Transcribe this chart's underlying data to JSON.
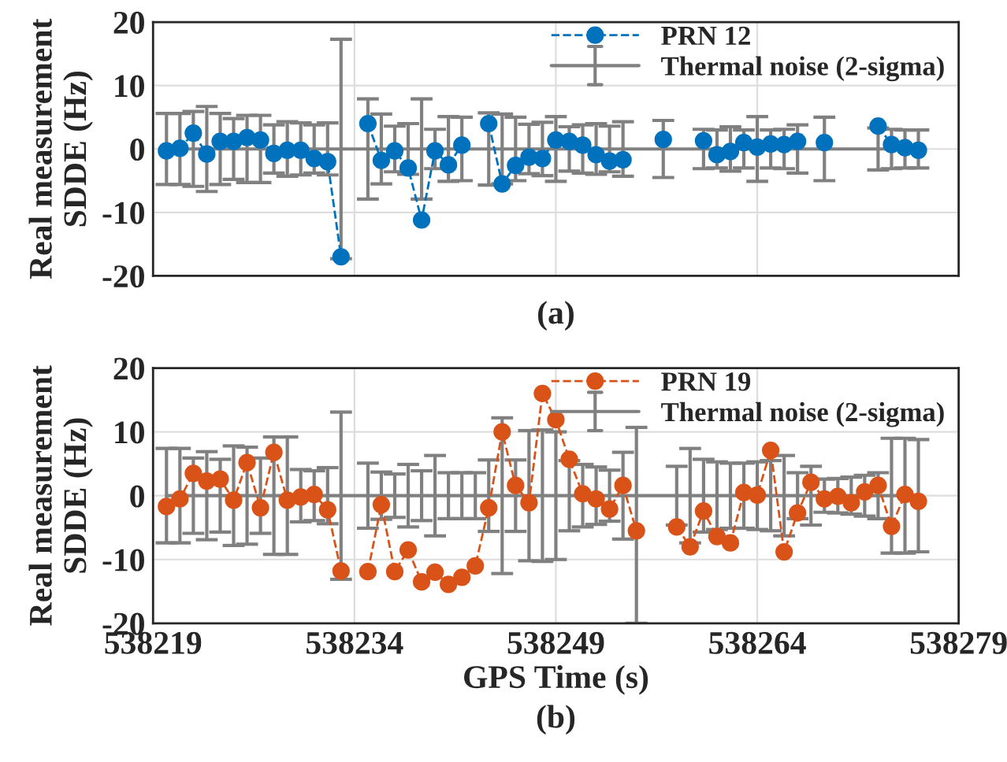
{
  "chart_data": [
    {
      "type": "line",
      "title": "(a)",
      "ylabel": "Real measurement\nSDDE (Hz)",
      "xlim": [
        538219,
        538279
      ],
      "xticks": [
        538219,
        538234,
        538249,
        538264,
        538279
      ],
      "ylim": [
        -20,
        20
      ],
      "yticks": [
        -20,
        -10,
        0,
        10,
        20
      ],
      "tick_labels": "y",
      "grid": true,
      "legend": "top right",
      "series": [
        {
          "name": "PRN 12",
          "color": "#0072bd",
          "marker": "circle",
          "line_style": "dashed",
          "x": [
            538220,
            538221,
            538222,
            538223,
            538224,
            538225,
            538226,
            538227,
            538228,
            538229,
            538230,
            538231,
            538232,
            538233,
            538234,
            538235,
            538236,
            538237,
            538238,
            538239,
            538240,
            538241,
            538242,
            538243,
            538244,
            538245,
            538246,
            538247,
            538248,
            538249,
            538250,
            538251,
            538252,
            538253,
            538254,
            538255,
            538256,
            538257,
            538258,
            538259,
            538260,
            538261,
            538262,
            538263,
            538264,
            538265,
            538266,
            538267,
            538268,
            538269,
            538270,
            538271,
            538272,
            538273,
            538274,
            538275,
            538276
          ],
          "values": [
            -0.3,
            0.1,
            2.5,
            -0.8,
            1.2,
            1.2,
            1.8,
            1.4,
            -0.7,
            -0.2,
            -0.2,
            -1.5,
            -2,
            -17,
            null,
            4,
            -1.8,
            -0.3,
            -3,
            -11.2,
            -0.3,
            -2.5,
            0.6,
            null,
            4,
            -5.5,
            -2.6,
            -1.3,
            -1.5,
            1.4,
            1.2,
            0.6,
            -0.9,
            -1.9,
            -1.7,
            null,
            null,
            1.5,
            null,
            null,
            1.3,
            -0.9,
            -0.4,
            1,
            0.3,
            0.8,
            0.7,
            1.2,
            null,
            1,
            null,
            null,
            null,
            3.6,
            0.7,
            0.2,
            -0.2
          ]
        },
        {
          "name": "Thermal noise (2-sigma)",
          "color": "#808080",
          "marker": "none",
          "line_style": "solid",
          "x": [
            538220,
            538221,
            538222,
            538223,
            538224,
            538225,
            538226,
            538227,
            538228,
            538229,
            538230,
            538231,
            538232,
            538233,
            538235,
            538236,
            538237,
            538238,
            538239,
            538240,
            538241,
            538242,
            538244,
            538245,
            538246,
            538247,
            538248,
            538249,
            538250,
            538251,
            538252,
            538253,
            538254,
            538257,
            538260,
            538261,
            538262,
            538263,
            538264,
            538265,
            538266,
            538267,
            538269,
            538273,
            538274,
            538275,
            538276
          ],
          "values": [
            0,
            0,
            0,
            0,
            0,
            0,
            0,
            0,
            0,
            0,
            0,
            0,
            0,
            0,
            0,
            0,
            0,
            0,
            0,
            0,
            0,
            0,
            0,
            0,
            0,
            0,
            0,
            0,
            0,
            0,
            0,
            0,
            0,
            0,
            0,
            0,
            0,
            0,
            0,
            0,
            0,
            0,
            0,
            0,
            0,
            0,
            0
          ],
          "errors": [
            5.6,
            5.6,
            5.9,
            6.7,
            5.6,
            4.8,
            5.3,
            5.3,
            3.8,
            4.3,
            4.1,
            3.8,
            4.1,
            17.3,
            7.9,
            5.5,
            3.6,
            4.0,
            7.9,
            3.1,
            5.1,
            5.0,
            5.7,
            5.5,
            5,
            3.9,
            4.2,
            5.1,
            3.5,
            3.8,
            4,
            3.6,
            4.3,
            4.5,
            3.1,
            3,
            3.5,
            3,
            5.1,
            3,
            3.1,
            3.8,
            5,
            3.3,
            3.1,
            3,
            3
          ]
        }
      ]
    },
    {
      "type": "line",
      "title": "(b)",
      "xlabel": "GPS Time (s)",
      "ylabel": "Real measurement\nSDDE (Hz)",
      "xlim": [
        538219,
        538279
      ],
      "xticks": [
        538219,
        538234,
        538249,
        538264,
        538279
      ],
      "ylim": [
        -20,
        20
      ],
      "yticks": [
        -20,
        -10,
        0,
        10,
        20
      ],
      "grid": true,
      "legend": "top right",
      "series": [
        {
          "name": "PRN 19",
          "color": "#d95319",
          "marker": "circle",
          "line_style": "dashed",
          "x": [
            538220,
            538221,
            538222,
            538223,
            538224,
            538225,
            538226,
            538227,
            538228,
            538229,
            538230,
            538231,
            538232,
            538233,
            538234,
            538235,
            538236,
            538237,
            538238,
            538239,
            538240,
            538241,
            538242,
            538243,
            538244,
            538245,
            538246,
            538247,
            538248,
            538249,
            538250,
            538251,
            538252,
            538253,
            538254,
            538255,
            538256,
            538257,
            538258,
            538259,
            538260,
            538261,
            538262,
            538263,
            538264,
            538265,
            538266,
            538267,
            538268,
            538269,
            538270,
            538271,
            538272,
            538273,
            538274,
            538275,
            538276
          ],
          "values": [
            -1.7,
            -0.5,
            3.5,
            2.3,
            2.6,
            -0.7,
            5.2,
            -1.9,
            6.8,
            -0.7,
            -0.2,
            0.2,
            -2.2,
            -11.8,
            null,
            -11.9,
            -1.4,
            -11.9,
            -8.5,
            -13.5,
            -12,
            -13.9,
            -12.8,
            -11,
            -1.9,
            10,
            1.6,
            -1.1,
            16,
            11.9,
            5.7,
            0.3,
            -0.5,
            -2.1,
            1.6,
            -5.5,
            null,
            null,
            -4.9,
            -8,
            -2.4,
            -6.4,
            -7.4,
            0.5,
            0.1,
            7.1,
            -8.8,
            -2.7,
            2.1,
            -0.5,
            -0.1,
            -1.1,
            0.6,
            1.6,
            -4.8,
            0.2,
            -0.9
          ]
        },
        {
          "name": "Thermal noise (2-sigma)",
          "color": "#808080",
          "marker": "none",
          "line_style": "solid",
          "x": [
            538220,
            538221,
            538222,
            538223,
            538224,
            538225,
            538226,
            538227,
            538228,
            538229,
            538230,
            538231,
            538232,
            538233,
            538235,
            538236,
            538237,
            538238,
            538239,
            538240,
            538241,
            538242,
            538243,
            538244,
            538245,
            538246,
            538247,
            538248,
            538249,
            538250,
            538251,
            538252,
            538253,
            538254,
            538255,
            538258,
            538259,
            538260,
            538261,
            538262,
            538263,
            538264,
            538265,
            538266,
            538267,
            538268,
            538269,
            538270,
            538271,
            538272,
            538273,
            538274,
            538275,
            538276
          ],
          "values": [
            0,
            0,
            0,
            0,
            0,
            0,
            0,
            0,
            0,
            0,
            0,
            0,
            0,
            0,
            0,
            0,
            0,
            0,
            0,
            0,
            0,
            0,
            0,
            0,
            0,
            0,
            0,
            0,
            0,
            0,
            0,
            0,
            0,
            0,
            0,
            0,
            0,
            0,
            0,
            0,
            0,
            0,
            0,
            0,
            0,
            0,
            0,
            0,
            0,
            0,
            0,
            0,
            0,
            0
          ],
          "errors": [
            7.4,
            7.4,
            5.9,
            6.9,
            5.7,
            7.8,
            7.6,
            5.9,
            9.2,
            9.2,
            4.1,
            3.9,
            4.4,
            13.1,
            5.1,
            3.7,
            3.4,
            4.9,
            3.9,
            6.3,
            3.6,
            3.6,
            3.6,
            5.6,
            12.2,
            5.6,
            10.2,
            10.3,
            10,
            5.5,
            4.9,
            4.5,
            4,
            6.8,
            [
              -20,
              10.7
            ],
            4.6,
            7.4,
            5.7,
            5.3,
            5.1,
            5.1,
            5.3,
            5.5,
            6.3,
            3.6,
            4.6,
            2.6,
            2.7,
            2.9,
            3.2,
            3.6,
            9,
            9,
            8.8
          ]
        }
      ]
    }
  ]
}
